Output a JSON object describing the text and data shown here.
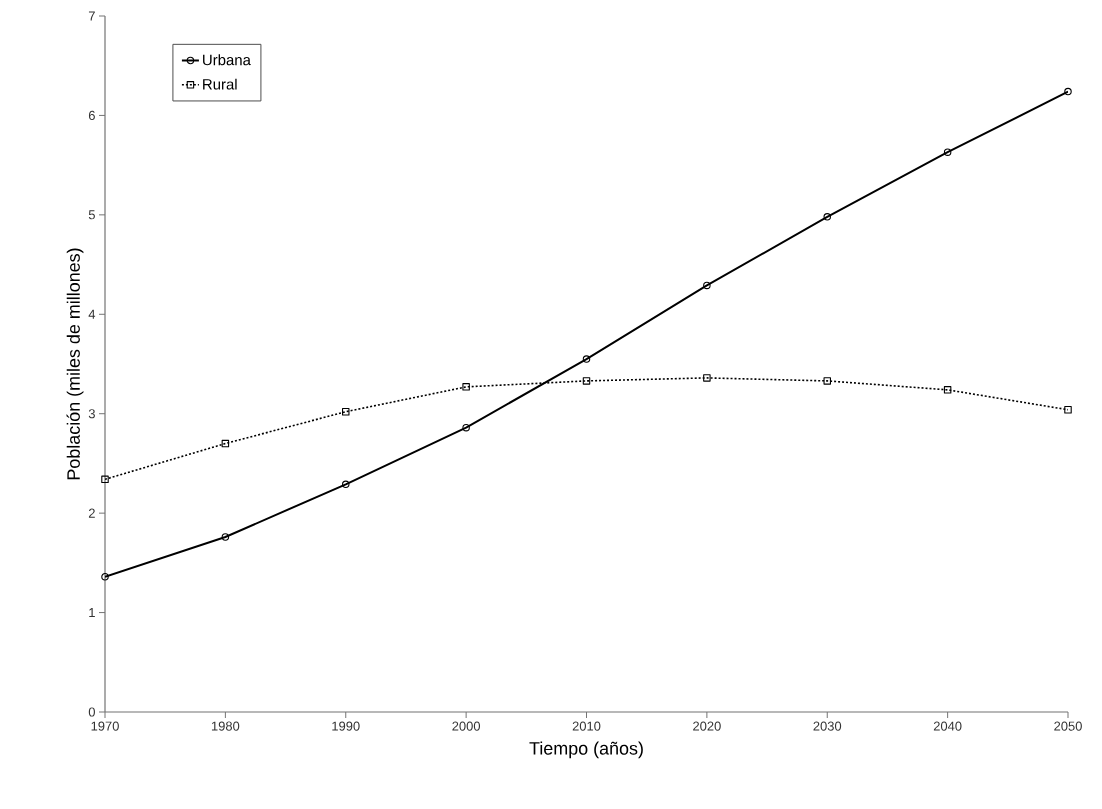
{
  "chart_data": {
    "type": "line",
    "xlabel": "Tiempo (años)",
    "ylabel": "Población (miles de millones)",
    "x": [
      1970,
      1980,
      1990,
      2000,
      2010,
      2020,
      2030,
      2040,
      2050
    ],
    "series": [
      {
        "name": "Urbana",
        "color": "#000000",
        "marker": "circle",
        "line_style": "solid",
        "values": [
          1.36,
          1.76,
          2.29,
          2.86,
          3.55,
          4.29,
          4.98,
          5.63,
          6.24
        ]
      },
      {
        "name": "Rural",
        "color": "#000000",
        "marker": "square",
        "line_style": "dotted",
        "values": [
          2.34,
          2.7,
          3.02,
          3.27,
          3.33,
          3.36,
          3.33,
          3.24,
          3.04
        ]
      }
    ],
    "xlim": [
      1970,
      2050
    ],
    "xticks": [
      1970,
      1980,
      1990,
      2000,
      2010,
      2020,
      2030,
      2040,
      2050
    ],
    "ylim": [
      0,
      7
    ],
    "yticks": [
      0,
      1,
      2,
      3,
      4,
      5,
      6,
      7
    ],
    "grid": false,
    "legend": "top left"
  }
}
